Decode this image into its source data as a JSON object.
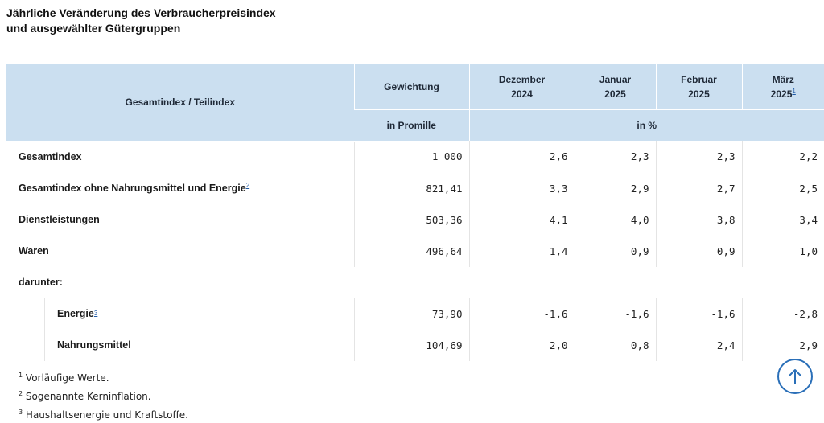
{
  "title_line1": "Jährliche Veränderung des Verbraucherpreisindex",
  "title_line2": "und ausgewählter Gütergruppen",
  "headers": {
    "index": "Gesamtindex / Teilindex",
    "weight": "Gewichtung",
    "weight_unit": "in Promille",
    "percent_unit": "in %",
    "months": [
      {
        "l1": "Dezember",
        "l2": "2024",
        "fn": ""
      },
      {
        "l1": "Januar",
        "l2": "2025",
        "fn": ""
      },
      {
        "l1": "Februar",
        "l2": "2025",
        "fn": ""
      },
      {
        "l1": "März",
        "l2": "2025",
        "fn": "1"
      }
    ]
  },
  "rows": [
    {
      "label": "Gesamtindex",
      "fn": "",
      "weight": "1 000",
      "values": [
        "2,6",
        "2,3",
        "2,3",
        "2,2"
      ]
    },
    {
      "label": "Gesamtindex ohne Nahrungsmittel und Energie",
      "fn": "2",
      "weight": "821,41",
      "values": [
        "3,3",
        "2,9",
        "2,7",
        "2,5"
      ]
    },
    {
      "label": "Dienstleistungen",
      "fn": "",
      "weight": "503,36",
      "values": [
        "4,1",
        "4,0",
        "3,8",
        "3,4"
      ]
    },
    {
      "label": "Waren",
      "fn": "",
      "weight": "496,64",
      "values": [
        "1,4",
        "0,9",
        "0,9",
        "1,0"
      ]
    }
  ],
  "subheading": "darunter:",
  "subrows": [
    {
      "label": "Energie",
      "fn": "3",
      "weight": "73,90",
      "values": [
        "-1,6",
        "-1,6",
        "-1,6",
        "-2,8"
      ]
    },
    {
      "label": "Nahrungsmittel",
      "fn": "",
      "weight": "104,69",
      "values": [
        "2,0",
        "0,8",
        "2,4",
        "2,9"
      ]
    }
  ],
  "footnotes": [
    {
      "num": "1",
      "text": "Vorläufige Werte."
    },
    {
      "num": "2",
      "text": "Sogenannte Kerninflation."
    },
    {
      "num": "3",
      "text": "Haushaltsenergie und Kraftstoffe."
    }
  ],
  "icons": {
    "back_to_top": "arrow-up-icon"
  },
  "colors": {
    "header_bg": "#cbdff0",
    "accent": "#2a6fb8"
  }
}
